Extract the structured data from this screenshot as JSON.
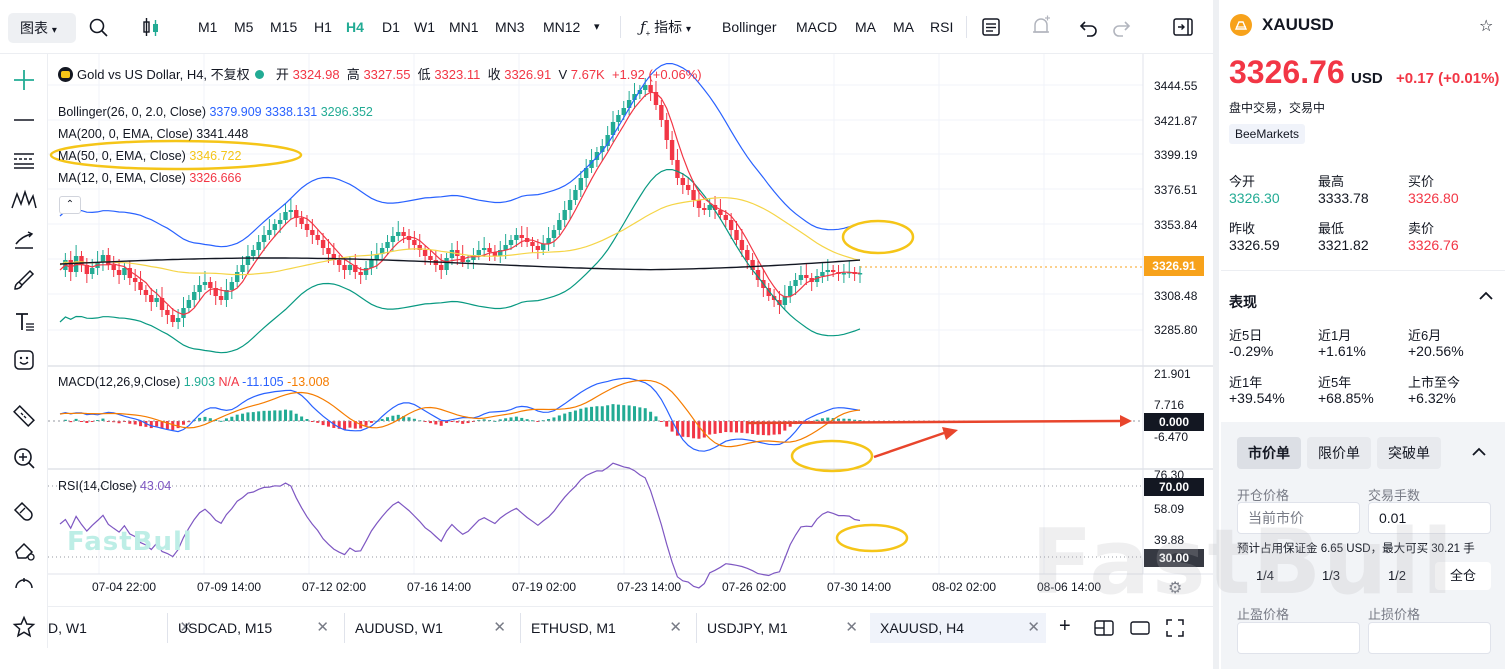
{
  "toolbar": {
    "layout_button": "图表",
    "timeframes": [
      "M1",
      "M5",
      "M15",
      "H1",
      "H4",
      "D1",
      "W1",
      "MN1",
      "MN3",
      "MN12"
    ],
    "active_timeframe": "H4",
    "indicators_label": "指标",
    "indicator_buttons": [
      "Bollinger",
      "MACD",
      "MA",
      "MA",
      "RSI"
    ]
  },
  "legend": {
    "title": "Gold vs US Dollar, H4, 不复权",
    "open_label": "开",
    "open": "3324.98",
    "high_label": "高",
    "high": "3327.55",
    "low_label": "低",
    "low": "3323.11",
    "close_label": "收",
    "close": "3326.91",
    "volume_label": "V",
    "volume": "7.67K",
    "change": "+1.92 (+0.06%)"
  },
  "indicator_legends": {
    "bollinger": {
      "name": "Bollinger(26, 0, 2.0, Close)",
      "upper": "3379.909",
      "middle": "3338.131",
      "lower": "3296.352"
    },
    "ma200": {
      "name": "MA(200, 0, EMA, Close)",
      "value": "3341.448"
    },
    "ma50": {
      "name": "MA(50, 0, EMA, Close)",
      "value": "3346.722"
    },
    "ma12": {
      "name": "MA(12, 0, EMA, Close)",
      "value": "3326.666"
    },
    "macd": {
      "name": "MACD(12,26,9,Close)",
      "hist": "1.903",
      "signal_na": "N/A",
      "macd": "-11.105",
      "signal": "-13.008"
    },
    "rsi": {
      "name": "RSI(14,Close)",
      "value": "43.04"
    }
  },
  "price_axis": [
    "3444.55",
    "3421.87",
    "3399.19",
    "3376.51",
    "3353.84",
    "3308.48",
    "3285.80"
  ],
  "current_price_tag": "3326.91",
  "macd_axis": [
    "21.901",
    "7.716",
    "-6.470"
  ],
  "macd_zero_tag": "0.000",
  "rsi_axis": [
    "76.30",
    "58.09",
    "39.88"
  ],
  "rsi_tags": {
    "upper": "70.00",
    "lower": "30.00"
  },
  "time_axis": [
    "07-04 22:00",
    "07-09 14:00",
    "07-12 02:00",
    "07-16 14:00",
    "07-19 02:00",
    "07-23 14:00",
    "07-26 02:00",
    "07-30 14:00",
    "08-02 02:00",
    "08-06 14:00"
  ],
  "watermark": "FastBull",
  "bottom_tabs": [
    {
      "label": "D, W1"
    },
    {
      "label": "USDCAD, M15"
    },
    {
      "label": "AUDUSD, W1"
    },
    {
      "label": "ETHUSD, M1"
    },
    {
      "label": "USDJPY, M1"
    },
    {
      "label": "XAUUSD, H4"
    }
  ],
  "colors": {
    "up": "#22ab94",
    "down": "#f23645",
    "accent": "#22ab94",
    "price_red": "#f23645",
    "annotation_yellow": "#f5c518",
    "arrow_red": "#e8452c"
  },
  "sidebar": {
    "symbol": "XAUUSD",
    "price": "3326.76",
    "currency": "USD",
    "change": "+0.17",
    "change_pct": "(+0.01%)",
    "status": "盘中交易，交易中",
    "broker": "BeeMarkets",
    "stats": [
      {
        "label": "今开",
        "value": "3326.30"
      },
      {
        "label": "最高",
        "value": "3333.78"
      },
      {
        "label": "买价",
        "value": "3326.80"
      },
      {
        "label": "昨收",
        "value": "3326.59"
      },
      {
        "label": "最低",
        "value": "3321.82"
      },
      {
        "label": "卖价",
        "value": "3326.76"
      }
    ],
    "perf_title": "表现",
    "performance": [
      {
        "label": "近5日",
        "value": "-0.29%"
      },
      {
        "label": "近1月",
        "value": "+1.61%"
      },
      {
        "label": "近6月",
        "value": "+20.56%"
      },
      {
        "label": "近1年",
        "value": "+39.54%"
      },
      {
        "label": "近5年",
        "value": "+68.85%"
      },
      {
        "label": "上市至今",
        "value": "+6.32%"
      }
    ]
  },
  "order": {
    "tabs": [
      "市价单",
      "限价单",
      "突破单"
    ],
    "open_price_label": "开仓价格",
    "open_price_value": "当前市价",
    "lots_label": "交易手数",
    "lots_value": "0.01",
    "margin_prefix": "预计占用保证金",
    "margin_value": "6.65",
    "margin_unit": "USD，最大可买",
    "max_value": "30.21",
    "max_unit": "手",
    "fractions": [
      "1/4",
      "1/3",
      "1/2",
      "全仓"
    ],
    "tp_label": "止盈价格",
    "sl_label": "止损价格"
  }
}
